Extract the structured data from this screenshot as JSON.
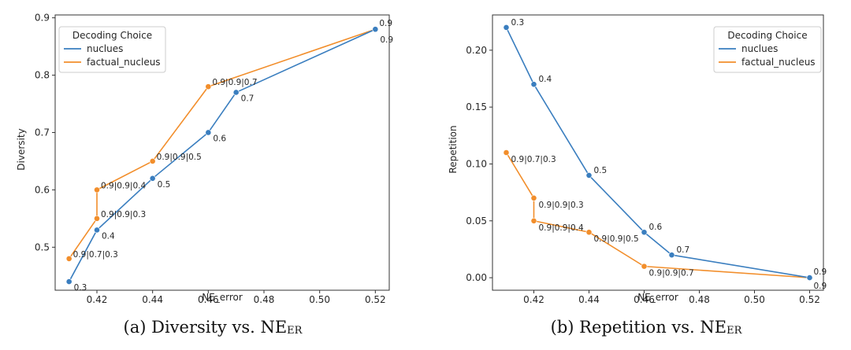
{
  "colors": {
    "nucleus": "#3a7ebf",
    "factual": "#f28e2b",
    "axis": "#333333"
  },
  "chart_data": [
    {
      "type": "line",
      "id": "a",
      "ylabel": "Diversity",
      "xlabel": "NE_error",
      "xlim": [
        0.405,
        0.525
      ],
      "ylim": [
        0.425,
        0.905
      ],
      "xticks": [
        0.42,
        0.44,
        0.46,
        0.48,
        0.5,
        0.52
      ],
      "yticks": [
        0.5,
        0.6,
        0.7,
        0.8,
        0.9
      ],
      "legend": {
        "title": "Decoding Choice",
        "position": "top-left"
      },
      "series": [
        {
          "name": "nuclues",
          "color_key": "nucleus",
          "points": [
            {
              "x": 0.41,
              "y": 0.44,
              "label": "0.3"
            },
            {
              "x": 0.42,
              "y": 0.53,
              "label": "0.4"
            },
            {
              "x": 0.44,
              "y": 0.62,
              "label": "0.5"
            },
            {
              "x": 0.46,
              "y": 0.7,
              "label": "0.6"
            },
            {
              "x": 0.47,
              "y": 0.77,
              "label": "0.7"
            },
            {
              "x": 0.52,
              "y": 0.88,
              "label": "0.9"
            }
          ]
        },
        {
          "name": "factual_nucleus",
          "color_key": "factual",
          "points": [
            {
              "x": 0.41,
              "y": 0.48,
              "label": "0.9|0.7|0.3"
            },
            {
              "x": 0.42,
              "y": 0.55,
              "label": "0.9|0.9|0.3"
            },
            {
              "x": 0.42,
              "y": 0.6,
              "label": "0.9|0.9|0.4"
            },
            {
              "x": 0.44,
              "y": 0.65,
              "label": "0.9|0.9|0.5"
            },
            {
              "x": 0.46,
              "y": 0.78,
              "label": "0.9|0.9|0.7"
            },
            {
              "x": 0.52,
              "y": 0.88,
              "label": "0.9"
            }
          ]
        }
      ]
    },
    {
      "type": "line",
      "id": "b",
      "ylabel": "Repetition",
      "xlabel": "NE_error",
      "xlim": [
        0.405,
        0.525
      ],
      "ylim": [
        -0.011,
        0.231
      ],
      "xticks": [
        0.42,
        0.44,
        0.46,
        0.48,
        0.5,
        0.52
      ],
      "yticks": [
        0.0,
        0.05,
        0.1,
        0.15,
        0.2
      ],
      "legend": {
        "title": "Decoding Choice",
        "position": "top-right"
      },
      "series": [
        {
          "name": "nuclues",
          "color_key": "nucleus",
          "points": [
            {
              "x": 0.41,
              "y": 0.22,
              "label": "0.3"
            },
            {
              "x": 0.42,
              "y": 0.17,
              "label": "0.4"
            },
            {
              "x": 0.44,
              "y": 0.09,
              "label": "0.5"
            },
            {
              "x": 0.46,
              "y": 0.04,
              "label": "0.6"
            },
            {
              "x": 0.47,
              "y": 0.02,
              "label": "0.7"
            },
            {
              "x": 0.52,
              "y": 0.0,
              "label": "0.9"
            }
          ]
        },
        {
          "name": "factual_nucleus",
          "color_key": "factual",
          "points": [
            {
              "x": 0.41,
              "y": 0.11,
              "label": "0.9|0.7|0.3"
            },
            {
              "x": 0.42,
              "y": 0.07,
              "label": "0.9|0.9|0.3"
            },
            {
              "x": 0.42,
              "y": 0.05,
              "label": "0.9|0.9|0.4"
            },
            {
              "x": 0.44,
              "y": 0.04,
              "label": "0.9|0.9|0.5"
            },
            {
              "x": 0.46,
              "y": 0.01,
              "label": "0.9|0.9|0.7"
            },
            {
              "x": 0.52,
              "y": 0.0,
              "label": "0.9"
            }
          ]
        }
      ]
    }
  ],
  "captions": {
    "a": {
      "prefix": "(a) Diversity vs. NE",
      "subscript": "ER"
    },
    "b": {
      "prefix": "(b) Repetition vs. NE",
      "subscript": "ER"
    }
  }
}
